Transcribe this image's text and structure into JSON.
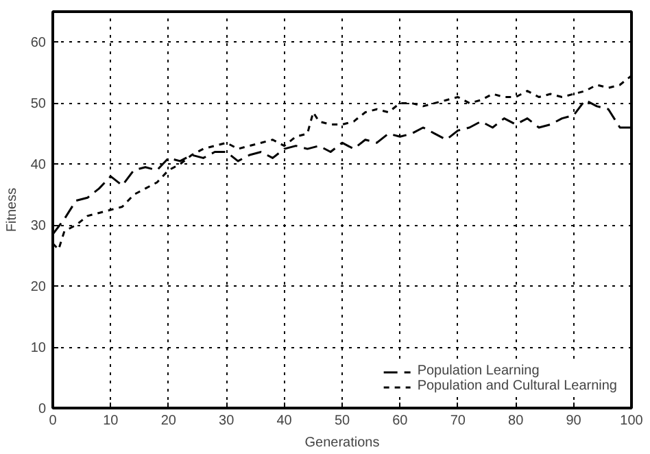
{
  "chart_data": {
    "type": "line",
    "xlabel": "Generations",
    "ylabel": "Fitness",
    "xlim": [
      0,
      100
    ],
    "ylim": [
      0,
      65
    ],
    "xticks": [
      0,
      10,
      20,
      30,
      40,
      50,
      60,
      70,
      80,
      90,
      100
    ],
    "yticks": [
      0,
      10,
      20,
      30,
      40,
      50,
      60
    ],
    "grid": true,
    "legend": "bottom right",
    "marker": "none",
    "series": [
      {
        "name": "Population Learning",
        "color": "#000000",
        "line_style": "dashed",
        "x": [
          0,
          2,
          4,
          6,
          8,
          10,
          12,
          14,
          16,
          18,
          20,
          22,
          24,
          26,
          28,
          30,
          32,
          34,
          36,
          38,
          40,
          42,
          44,
          46,
          48,
          50,
          52,
          54,
          56,
          58,
          60,
          62,
          64,
          66,
          68,
          70,
          72,
          74,
          76,
          78,
          80,
          82,
          84,
          86,
          88,
          90,
          92,
          94,
          96,
          98,
          100
        ],
        "values": [
          28.5,
          31,
          34,
          34.5,
          36,
          38,
          36.5,
          39,
          39.5,
          39,
          41,
          40.5,
          41.5,
          41,
          42,
          42,
          40.5,
          41.5,
          42,
          41,
          42.5,
          43,
          42.5,
          43,
          42,
          43.5,
          42.5,
          44,
          43.5,
          45,
          44.5,
          45,
          46,
          45,
          44,
          45.5,
          46,
          47,
          46,
          47.5,
          46.5,
          47.5,
          46,
          46.5,
          47.5,
          48,
          50.5,
          49.5,
          49,
          46,
          46
        ]
      },
      {
        "name": "Population and Cultural Learning",
        "color": "#000000",
        "line_style": "dotted",
        "x": [
          0,
          1,
          2,
          4,
          6,
          8,
          10,
          12,
          14,
          16,
          18,
          20,
          22,
          24,
          26,
          28,
          30,
          32,
          34,
          36,
          38,
          40,
          42,
          44,
          45,
          46,
          48,
          50,
          52,
          54,
          56,
          58,
          60,
          62,
          64,
          66,
          68,
          70,
          72,
          74,
          76,
          78,
          80,
          82,
          84,
          86,
          88,
          90,
          92,
          94,
          96,
          98,
          100
        ],
        "values": [
          27,
          26,
          29,
          30,
          31.5,
          32,
          32.5,
          33,
          35,
          36,
          37,
          39,
          40,
          41.5,
          42.5,
          43,
          43.5,
          42.5,
          43,
          43.5,
          44,
          43,
          44.5,
          45,
          48.5,
          47,
          46.5,
          46.5,
          47,
          48.5,
          49,
          48.5,
          50,
          50,
          49.5,
          50,
          50.5,
          51,
          50,
          50.5,
          51.5,
          51,
          51,
          52,
          51,
          51.5,
          51,
          51.5,
          52,
          53,
          52.5,
          53,
          54.5
        ]
      }
    ]
  }
}
